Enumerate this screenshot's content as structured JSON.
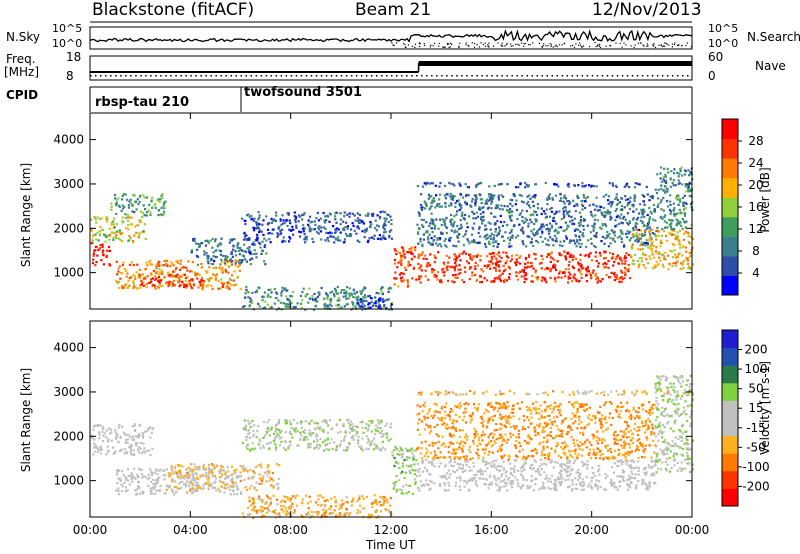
{
  "header": {
    "title": "Blackstone (fitACF)",
    "beam": "Beam 21",
    "date": "12/Nov/2013"
  },
  "top_panels": {
    "nsky_label": "N.Sky",
    "nsearch_label": "N.Search",
    "noise_ticks": [
      "10^5",
      "10^0"
    ],
    "freq_label_line1": "Freq.",
    "freq_label_line2": "[MHz]",
    "freq_ticks": [
      "18",
      "8"
    ],
    "nave_label": "Nave",
    "nave_ticks": [
      "60",
      "0"
    ],
    "cpid_label": "CPID",
    "cpid_segments": [
      {
        "name": "rbsp-tau 210",
        "start_hour": 0,
        "end_hour": 5.95
      },
      {
        "name": "twofsound 3501",
        "start_hour": 5.95,
        "end_hour": 24
      }
    ],
    "freq_step_hour": 13.1
  },
  "time_axis": {
    "label": "Time UT",
    "tick_labels": [
      "00:00",
      "04:00",
      "08:00",
      "12:00",
      "16:00",
      "20:00",
      "00:00"
    ],
    "tick_hours": [
      0,
      4,
      8,
      12,
      16,
      20,
      24
    ]
  },
  "range_axis": {
    "label": "Slant Range [km]",
    "tick_labels": [
      "1000",
      "2000",
      "3000",
      "4000"
    ],
    "tick_values": [
      1000,
      2000,
      3000,
      4000
    ],
    "min": 180,
    "max": 4600
  },
  "colors": {
    "power_scale": [
      "#0000ff",
      "#2e4fa8",
      "#3b7f8f",
      "#3f9e5e",
      "#8fcf3a",
      "#ffb000",
      "#ff7a00",
      "#ff3300",
      "#ff0000"
    ],
    "velocity_scale": [
      "#1f1fd0",
      "#2450b0",
      "#2c7a4a",
      "#7fd040",
      "#c0c0c0",
      "#c0c0c0",
      "#ffb020",
      "#ff7a00",
      "#ff3300",
      "#ff0000"
    ]
  },
  "chart_data": [
    {
      "type": "heatmap",
      "title": "Power [dB]",
      "xlabel": "Time UT",
      "ylabel": "Slant Range [km]",
      "xlim": [
        0,
        24
      ],
      "ylim": [
        180,
        4600
      ],
      "colorbar": {
        "label": "Power [dB]",
        "ticks": [
          4,
          8,
          12,
          16,
          20,
          24,
          28
        ],
        "range": [
          0,
          32
        ]
      },
      "echo_regions": [
        {
          "t": [
            0.0,
            0.8
          ],
          "r": [
            1150,
            1700
          ],
          "value": 30
        },
        {
          "t": [
            0.0,
            2.2
          ],
          "r": [
            1700,
            2300
          ],
          "value": 18
        },
        {
          "t": [
            0.8,
            3.0
          ],
          "r": [
            2300,
            2800
          ],
          "value": 12
        },
        {
          "t": [
            1.0,
            6.0
          ],
          "r": [
            650,
            1300
          ],
          "value": 22
        },
        {
          "t": [
            2.0,
            4.5
          ],
          "r": [
            700,
            1000
          ],
          "value": 28
        },
        {
          "t": [
            4.0,
            7.0
          ],
          "r": [
            1200,
            1800
          ],
          "value": 8
        },
        {
          "t": [
            6.0,
            12.0
          ],
          "r": [
            1700,
            2400
          ],
          "value": 6
        },
        {
          "t": [
            6.0,
            12.0
          ],
          "r": [
            180,
            700
          ],
          "value": 10
        },
        {
          "t": [
            10.5,
            12.0
          ],
          "r": [
            180,
            450
          ],
          "value": 4
        },
        {
          "t": [
            12.0,
            13.0
          ],
          "r": [
            700,
            1600
          ],
          "value": 26
        },
        {
          "t": [
            13.0,
            21.5
          ],
          "r": [
            800,
            1500
          ],
          "value": 28
        },
        {
          "t": [
            13.0,
            22.5
          ],
          "r": [
            1600,
            2800
          ],
          "value": 8
        },
        {
          "t": [
            13.0,
            24.0
          ],
          "r": [
            2950,
            3050
          ],
          "value": 6
        },
        {
          "t": [
            21.5,
            24.0
          ],
          "r": [
            1100,
            2000
          ],
          "value": 20
        },
        {
          "t": [
            22.5,
            24.0
          ],
          "r": [
            2000,
            3400
          ],
          "value": 10
        }
      ]
    },
    {
      "type": "heatmap",
      "title": "Velocity [m s^-1]",
      "xlabel": "Time UT",
      "ylabel": "Slant Range [km]",
      "xlim": [
        0,
        24
      ],
      "ylim": [
        180,
        4600
      ],
      "colorbar": {
        "label": "Velocity [m s-1]",
        "ticks": [
          200,
          100,
          50,
          15,
          -15,
          -50,
          -100,
          -200
        ],
        "range": [
          -250,
          250
        ]
      },
      "echo_regions": [
        {
          "t": [
            0.0,
            2.5
          ],
          "r": [
            1600,
            2300
          ],
          "value": 0
        },
        {
          "t": [
            1.0,
            6.0
          ],
          "r": [
            700,
            1300
          ],
          "value": 0
        },
        {
          "t": [
            3.0,
            7.5
          ],
          "r": [
            800,
            1400
          ],
          "value": -60
        },
        {
          "t": [
            6.0,
            12.0
          ],
          "r": [
            1700,
            2400
          ],
          "value": 30
        },
        {
          "t": [
            6.0,
            12.0
          ],
          "r": [
            180,
            700
          ],
          "value": -80
        },
        {
          "t": [
            12.0,
            13.0
          ],
          "r": [
            700,
            1800
          ],
          "value": 60
        },
        {
          "t": [
            13.0,
            22.5
          ],
          "r": [
            800,
            1500
          ],
          "value": 0
        },
        {
          "t": [
            13.0,
            22.5
          ],
          "r": [
            1500,
            2800
          ],
          "value": -100
        },
        {
          "t": [
            13.0,
            24.0
          ],
          "r": [
            2950,
            3050
          ],
          "value": -60
        },
        {
          "t": [
            22.5,
            24.0
          ],
          "r": [
            1200,
            3400
          ],
          "value": 40
        }
      ]
    }
  ]
}
